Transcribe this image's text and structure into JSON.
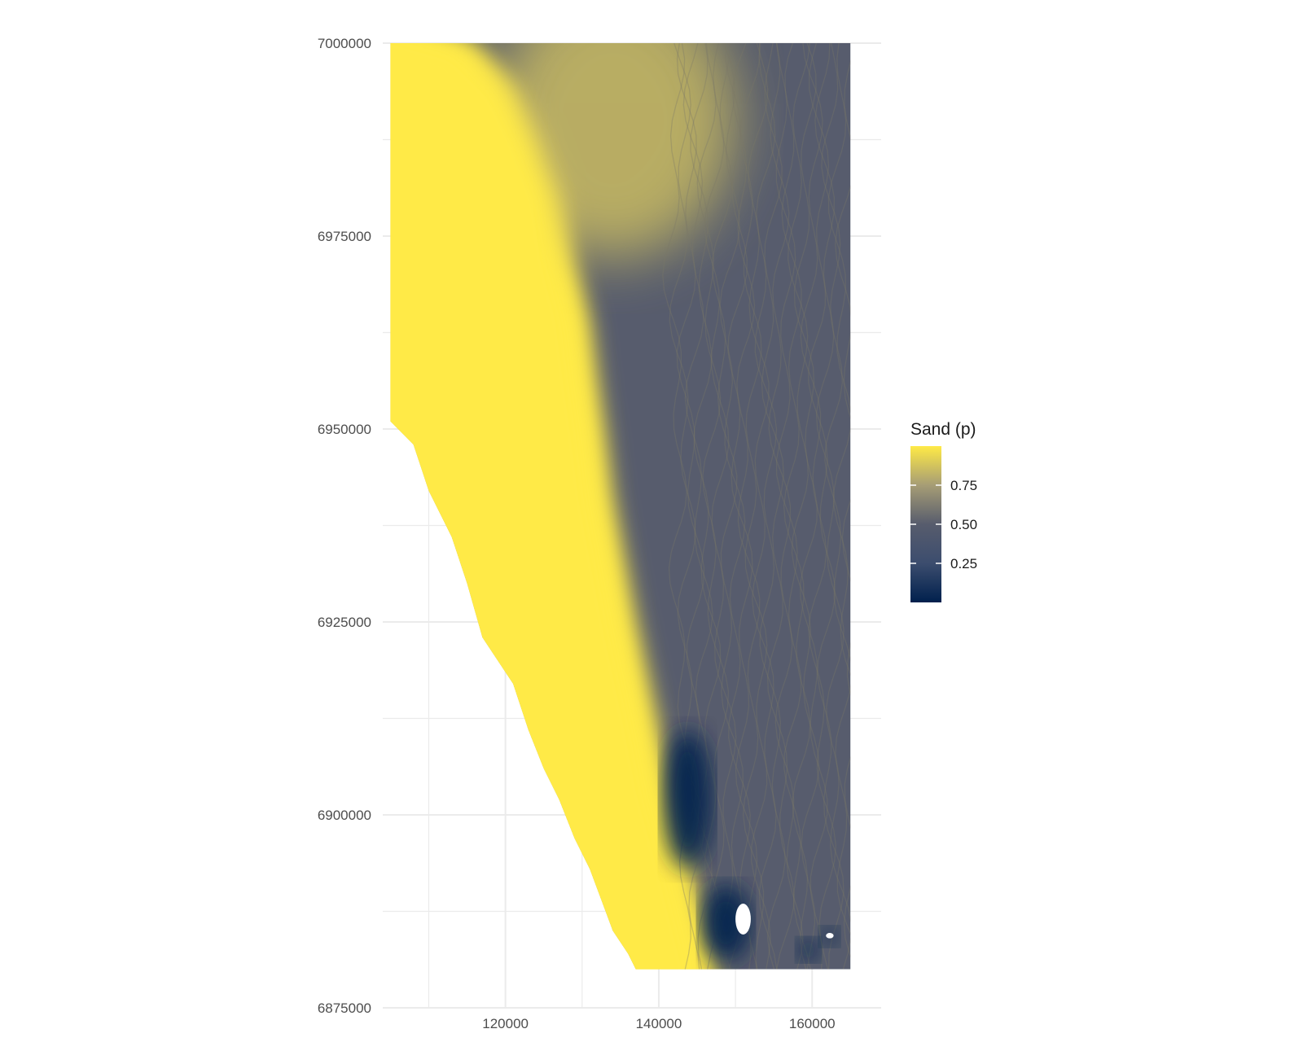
{
  "chart_data": {
    "type": "heatmap",
    "title": "",
    "xlabel": "",
    "ylabel": "",
    "x_ticks": [
      120000,
      140000,
      160000
    ],
    "x_tick_labels": [
      "120000",
      "140000",
      "160000"
    ],
    "y_ticks": [
      7000000,
      6975000,
      6950000,
      6925000,
      6900000,
      6875000
    ],
    "y_tick_labels": [
      "7000000",
      "6975000",
      "6950000",
      "6925000",
      "6900000",
      "6875000"
    ],
    "xlim": [
      104000,
      169000
    ],
    "ylim": [
      6875000,
      7000000
    ],
    "raster_extent": {
      "xmin": 105000,
      "xmax": 165000,
      "ymin": 6880000,
      "ymax": 7000000
    },
    "grid": true,
    "legend": {
      "title": "Sand (p)",
      "placement": "right",
      "breaks": [
        0.25,
        0.5,
        0.75
      ],
      "break_labels": [
        "0.25",
        "0.50",
        "0.75"
      ],
      "range": [
        0.0,
        1.0
      ]
    },
    "colormap": "cividis",
    "colors": {
      "low": "#00204d",
      "mid": "#575c6d",
      "high": "#ffea46",
      "missing": "#ffffff",
      "gridline": "#ebebeb"
    },
    "coast_west_boundary": [
      [
        105000,
        7000000
      ],
      [
        105000,
        6951000
      ],
      [
        108000,
        6948000
      ],
      [
        110000,
        6942000
      ],
      [
        113000,
        6936000
      ],
      [
        115000,
        6930000
      ],
      [
        117000,
        6923000
      ],
      [
        121000,
        6917000
      ],
      [
        123000,
        6911000
      ],
      [
        125000,
        6906000
      ],
      [
        127000,
        6902000
      ],
      [
        129000,
        6897000
      ],
      [
        131000,
        6893000
      ],
      [
        132500,
        6889000
      ],
      [
        134000,
        6885000
      ],
      [
        136000,
        6882000
      ],
      [
        137000,
        6880000
      ]
    ],
    "shelf_break_line": [
      [
        116000,
        7000000
      ],
      [
        122000,
        6994000
      ],
      [
        125000,
        6988000
      ],
      [
        128000,
        6980000
      ],
      [
        129000,
        6972000
      ],
      [
        131000,
        6964000
      ],
      [
        132000,
        6956000
      ],
      [
        133000,
        6949000
      ],
      [
        134000,
        6941000
      ],
      [
        135500,
        6933000
      ],
      [
        137000,
        6925000
      ],
      [
        138500,
        6918000
      ],
      [
        140000,
        6911000
      ],
      [
        141500,
        6903000
      ],
      [
        143500,
        6896000
      ],
      [
        145500,
        6888000
      ],
      [
        147500,
        6880000
      ]
    ],
    "mud_patches": [
      {
        "x": [
          140500,
          147000
        ],
        "y": [
          6893000,
          6911000
        ],
        "value": 0.05
      },
      {
        "x": [
          145500,
          152000
        ],
        "y": [
          6881000,
          6891000
        ],
        "value": 0.05
      },
      {
        "x": [
          158000,
          161000
        ],
        "y": [
          6881000,
          6884000
        ],
        "value": 0.08
      },
      {
        "x": [
          161000,
          163500
        ],
        "y": [
          6883000,
          6885500
        ],
        "value": 0.05
      }
    ],
    "missing_patches": [
      {
        "x": [
          150000,
          152000
        ],
        "y": [
          6884500,
          6888500
        ]
      },
      {
        "x": [
          161800,
          162800
        ],
        "y": [
          6884000,
          6884700
        ]
      }
    ]
  }
}
